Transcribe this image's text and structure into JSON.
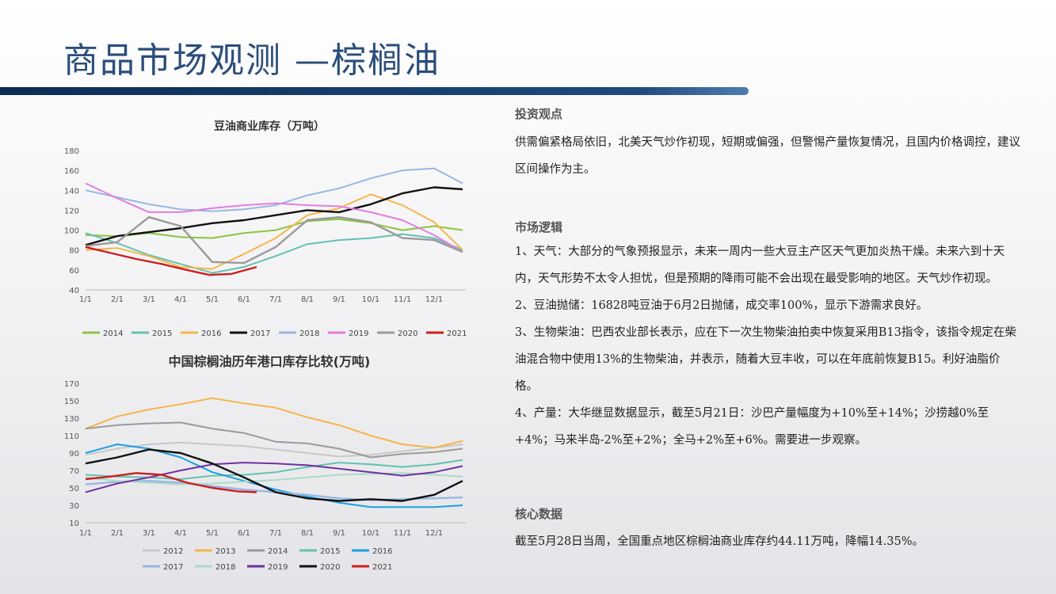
{
  "header": {
    "title": "商品市场观测 —棕榈油"
  },
  "right": {
    "view": {
      "heading": "投资观点",
      "text": "供需偏紧格局依旧，北美天气炒作初现，短期或偏强，但警惕产量恢复情况，且国内价格调控，建议区间操作为主。"
    },
    "logic": {
      "heading": "市场逻辑",
      "items": [
        "1、天气：大部分的气象预报显示，未来一周内一些大豆主产区天气更加炎热干燥。未来六到十天内，天气形势不太令人担忧，但是预期的降雨可能不会出现在最受影响的地区。天气炒作初现。",
        "2、豆油抛储：16828吨豆油于6月2日抛储，成交率100%，显示下游需求良好。",
        "3、生物柴油：巴西农业部长表示，应在下一次生物柴油拍卖中恢复采用B13指令，该指令规定在柴油混合物中使用13%的生物柴油，并表示，随着大豆丰收，可以在年底前恢复B15。利好油脂价格。",
        "4、产量：大华继显数据显示，截至5月21日：沙巴产量幅度为+10%至+14%；沙捞越0%至+4%；马来半岛-2%至+2%；全马+2%至+6%。需要进一步观察。"
      ]
    },
    "core": {
      "heading": "核心数据",
      "text": "截至5月28日当周，全国重点地区棕榈油商业库存约44.11万吨，降幅14.35%。"
    }
  },
  "chart_data": [
    {
      "type": "line",
      "title": "豆油商业库存（万吨）",
      "x_ticks": [
        "1/1",
        "2/1",
        "3/1",
        "4/1",
        "5/1",
        "6/1",
        "7/1",
        "8/1",
        "9/1",
        "10/1",
        "11/1",
        "12/1"
      ],
      "y_ticks": [
        40,
        60,
        80,
        100,
        120,
        140,
        160,
        180
      ],
      "ylim": [
        40,
        180
      ],
      "x_range": [
        0,
        12
      ],
      "legend_position": "bottom",
      "series": [
        {
          "name": "2014",
          "color": "#8cc43f",
          "x": [
            0,
            1,
            2,
            3,
            4,
            5,
            6,
            7,
            8,
            9,
            10,
            11,
            11.9
          ],
          "values": [
            95,
            94,
            97,
            93,
            92,
            97,
            100,
            109,
            111,
            107,
            100,
            104,
            100
          ]
        },
        {
          "name": "2015",
          "color": "#62c2b0",
          "x": [
            0,
            1,
            2,
            3,
            4,
            5,
            6,
            7,
            8,
            9,
            10,
            11,
            11.9
          ],
          "values": [
            97,
            87,
            75,
            66,
            57,
            63,
            74,
            86,
            90,
            92,
            96,
            92,
            80
          ]
        },
        {
          "name": "2016",
          "color": "#f5b64a",
          "x": [
            0,
            1,
            2,
            3,
            4,
            5,
            6,
            7,
            8,
            9,
            10,
            11,
            11.9
          ],
          "values": [
            80,
            82,
            74,
            63,
            61,
            76,
            92,
            115,
            122,
            136,
            125,
            108,
            80
          ]
        },
        {
          "name": "2017",
          "color": "#111111",
          "x": [
            0,
            1,
            2,
            3,
            4,
            5,
            6,
            7,
            8,
            9,
            10,
            11,
            11.9
          ],
          "values": [
            85,
            94,
            98,
            102,
            107,
            110,
            115,
            120,
            118,
            126,
            137,
            143,
            141
          ]
        },
        {
          "name": "2018",
          "color": "#98b8e3",
          "x": [
            0,
            1,
            2,
            3,
            4,
            5,
            6,
            7,
            8,
            9,
            10,
            11,
            11.9
          ],
          "values": [
            140,
            133,
            126,
            121,
            119,
            121,
            125,
            135,
            142,
            152,
            160,
            162,
            147
          ]
        },
        {
          "name": "2019",
          "color": "#e27ee0",
          "x": [
            0,
            1,
            2,
            3,
            4,
            5,
            6,
            7,
            8,
            9,
            10,
            11,
            11.9
          ],
          "values": [
            147,
            132,
            118,
            118,
            122,
            125,
            127,
            125,
            124,
            118,
            110,
            95,
            78
          ]
        },
        {
          "name": "2020",
          "color": "#9a9a9a",
          "x": [
            0,
            1,
            2,
            3,
            4,
            5,
            6,
            7,
            8,
            9,
            10,
            11,
            11.9
          ],
          "values": [
            84,
            88,
            113,
            104,
            68,
            67,
            83,
            110,
            113,
            108,
            92,
            90,
            78
          ]
        },
        {
          "name": "2021",
          "color": "#cc1f1f",
          "x": [
            0,
            0.8,
            1.6,
            2.4,
            3.2,
            3.9,
            4.6,
            5.4
          ],
          "values": [
            83,
            77,
            71,
            66,
            60,
            55,
            56,
            63
          ]
        }
      ]
    },
    {
      "type": "line",
      "title": "中国棕榈油历年港口库存比较(万吨)",
      "x_ticks": [
        "1/1",
        "2/1",
        "3/1",
        "4/1",
        "5/1",
        "6/1",
        "7/1",
        "8/1",
        "9/1",
        "10/1",
        "11/1",
        "12/1"
      ],
      "y_ticks": [
        10,
        30,
        50,
        70,
        90,
        110,
        130,
        150,
        170
      ],
      "ylim": [
        10,
        170
      ],
      "x_range": [
        0,
        12
      ],
      "legend_position": "bottom",
      "series": [
        {
          "name": "2012",
          "color": "#c8c8c8",
          "x": [
            0,
            1,
            2,
            3,
            4,
            5,
            6,
            7,
            8,
            9,
            10,
            11,
            11.9
          ],
          "values": [
            88,
            95,
            100,
            102,
            100,
            98,
            94,
            90,
            86,
            88,
            92,
            96,
            100
          ]
        },
        {
          "name": "2013",
          "color": "#f5b64a",
          "x": [
            0,
            1,
            2,
            3,
            4,
            5,
            6,
            7,
            8,
            9,
            10,
            11,
            11.9
          ],
          "values": [
            118,
            132,
            140,
            146,
            153,
            147,
            142,
            131,
            122,
            110,
            100,
            96,
            104
          ]
        },
        {
          "name": "2014",
          "color": "#9a9a9a",
          "x": [
            0,
            1,
            2,
            3,
            4,
            5,
            6,
            7,
            8,
            9,
            10,
            11,
            11.9
          ],
          "values": [
            118,
            122,
            124,
            125,
            118,
            113,
            103,
            101,
            95,
            85,
            89,
            91,
            95
          ]
        },
        {
          "name": "2015",
          "color": "#62c2b0",
          "x": [
            0,
            1,
            2,
            3,
            4,
            5,
            6,
            7,
            8,
            9,
            10,
            11,
            11.9
          ],
          "values": [
            65,
            63,
            62,
            60,
            64,
            65,
            68,
            74,
            79,
            77,
            74,
            77,
            82
          ]
        },
        {
          "name": "2016",
          "color": "#1aa0e0",
          "x": [
            0,
            1,
            2,
            3,
            4,
            5,
            6,
            7,
            8,
            9,
            10,
            11,
            11.9
          ],
          "values": [
            90,
            100,
            95,
            85,
            68,
            58,
            48,
            40,
            33,
            28,
            28,
            28,
            30
          ]
        },
        {
          "name": "2017",
          "color": "#98b8e3",
          "x": [
            0,
            1,
            2,
            3,
            4,
            5,
            6,
            7,
            8,
            9,
            10,
            11,
            11.9
          ],
          "values": [
            54,
            57,
            58,
            56,
            52,
            48,
            45,
            42,
            38,
            36,
            37,
            38,
            39
          ]
        },
        {
          "name": "2018",
          "color": "#a8dcc8",
          "x": [
            0,
            1,
            2,
            3,
            4,
            5,
            6,
            7,
            8,
            9,
            10,
            11,
            11.9
          ],
          "values": [
            62,
            58,
            56,
            54,
            55,
            57,
            59,
            62,
            65,
            66,
            67,
            65,
            63
          ]
        },
        {
          "name": "2019",
          "color": "#7030a0",
          "x": [
            0,
            1,
            2,
            3,
            4,
            5,
            6,
            7,
            8,
            9,
            10,
            11,
            11.9
          ],
          "values": [
            45,
            55,
            62,
            70,
            77,
            79,
            78,
            76,
            72,
            68,
            64,
            68,
            75
          ]
        },
        {
          "name": "2020",
          "color": "#111111",
          "x": [
            0,
            1,
            2,
            3,
            4,
            5,
            6,
            7,
            8,
            9,
            10,
            11,
            11.9
          ],
          "values": [
            78,
            85,
            94,
            90,
            78,
            62,
            45,
            38,
            35,
            37,
            35,
            42,
            58
          ]
        },
        {
          "name": "2021",
          "color": "#cc1f1f",
          "x": [
            0,
            0.8,
            1.6,
            2.4,
            3.2,
            4.0,
            4.8,
            5.4
          ],
          "values": [
            60,
            63,
            67,
            65,
            56,
            50,
            46,
            45
          ]
        }
      ]
    }
  ]
}
